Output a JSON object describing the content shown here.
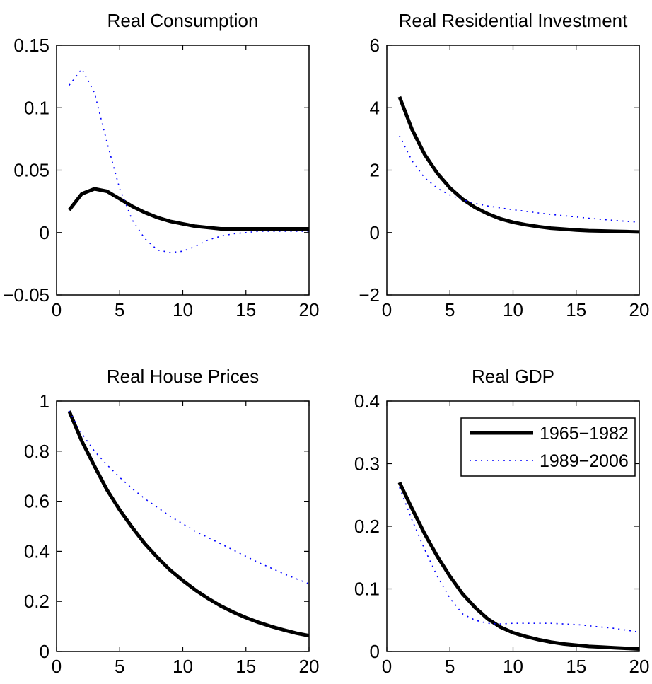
{
  "figure": {
    "legend": {
      "placement": "top-right of panel 4",
      "entries": [
        {
          "label": "1965−1982",
          "series_index": 0
        },
        {
          "label": "1989−2006",
          "series_index": 1
        }
      ]
    },
    "series_styles": [
      {
        "color": "#000000",
        "line": "solid-thick"
      },
      {
        "color": "#0000ff",
        "line": "dotted"
      }
    ]
  },
  "chart_data": [
    {
      "type": "line",
      "title": "Real Consumption",
      "xlabel": "",
      "ylabel": "",
      "xlim": [
        0,
        20
      ],
      "ylim": [
        -0.05,
        0.15
      ],
      "xticks": [
        0,
        5,
        10,
        15,
        20
      ],
      "xtick_labels": [
        "0",
        "5",
        "10",
        "15",
        "20"
      ],
      "yticks": [
        -0.05,
        0,
        0.05,
        0.1,
        0.15
      ],
      "ytick_labels": [
        "−0.05",
        "0",
        "0.05",
        "0.1",
        "0.15"
      ],
      "grid": false,
      "x": [
        1,
        2,
        3,
        4,
        5,
        6,
        7,
        8,
        9,
        10,
        11,
        12,
        13,
        14,
        15,
        16,
        17,
        18,
        19,
        20
      ],
      "series": [
        {
          "name": "1965−1982",
          "values": [
            0.018,
            0.031,
            0.035,
            0.033,
            0.027,
            0.021,
            0.016,
            0.012,
            0.009,
            0.007,
            0.005,
            0.004,
            0.003,
            0.003,
            0.003,
            0.003,
            0.003,
            0.003,
            0.003,
            0.003
          ]
        },
        {
          "name": "1989−2006",
          "values": [
            0.118,
            0.131,
            0.112,
            0.072,
            0.035,
            0.01,
            -0.005,
            -0.014,
            -0.016,
            -0.015,
            -0.011,
            -0.006,
            -0.003,
            -0.001,
            0.0,
            0.001,
            0.001,
            0.001,
            0.001,
            0.001
          ]
        }
      ]
    },
    {
      "type": "line",
      "title": "Real Residential Investment",
      "xlabel": "",
      "ylabel": "",
      "xlim": [
        0,
        20
      ],
      "ylim": [
        -2,
        6
      ],
      "xticks": [
        0,
        5,
        10,
        15,
        20
      ],
      "xtick_labels": [
        "0",
        "5",
        "10",
        "15",
        "20"
      ],
      "yticks": [
        -2,
        0,
        2,
        4,
        6
      ],
      "ytick_labels": [
        "−2",
        "0",
        "2",
        "4",
        "6"
      ],
      "grid": false,
      "x": [
        1,
        2,
        3,
        4,
        5,
        6,
        7,
        8,
        9,
        10,
        11,
        12,
        13,
        14,
        15,
        16,
        17,
        18,
        19,
        20
      ],
      "series": [
        {
          "name": "1965−1982",
          "values": [
            4.35,
            3.3,
            2.5,
            1.9,
            1.43,
            1.07,
            0.8,
            0.6,
            0.44,
            0.33,
            0.25,
            0.19,
            0.14,
            0.11,
            0.08,
            0.06,
            0.05,
            0.04,
            0.03,
            0.02
          ]
        },
        {
          "name": "1989−2006",
          "values": [
            3.1,
            2.3,
            1.75,
            1.42,
            1.2,
            1.05,
            0.93,
            0.85,
            0.79,
            0.73,
            0.68,
            0.63,
            0.58,
            0.54,
            0.5,
            0.46,
            0.42,
            0.39,
            0.36,
            0.33
          ]
        }
      ]
    },
    {
      "type": "line",
      "title": "Real House Prices",
      "xlabel": "",
      "ylabel": "",
      "xlim": [
        0,
        20
      ],
      "ylim": [
        0,
        1
      ],
      "xticks": [
        0,
        5,
        10,
        15,
        20
      ],
      "xtick_labels": [
        "0",
        "5",
        "10",
        "15",
        "20"
      ],
      "yticks": [
        0,
        0.2,
        0.4,
        0.6,
        0.8,
        1
      ],
      "ytick_labels": [
        "0",
        "0.2",
        "0.4",
        "0.6",
        "0.8",
        "1"
      ],
      "grid": false,
      "x": [
        1,
        2,
        3,
        4,
        5,
        6,
        7,
        8,
        9,
        10,
        11,
        12,
        13,
        14,
        15,
        16,
        17,
        18,
        19,
        20
      ],
      "series": [
        {
          "name": "1965−1982",
          "values": [
            0.96,
            0.84,
            0.74,
            0.645,
            0.565,
            0.495,
            0.43,
            0.375,
            0.325,
            0.283,
            0.245,
            0.212,
            0.182,
            0.157,
            0.135,
            0.116,
            0.1,
            0.086,
            0.073,
            0.063
          ]
        },
        {
          "name": "1989−2006",
          "values": [
            0.96,
            0.87,
            0.8,
            0.745,
            0.695,
            0.65,
            0.61,
            0.575,
            0.54,
            0.51,
            0.48,
            0.455,
            0.43,
            0.405,
            0.38,
            0.355,
            0.333,
            0.31,
            0.29,
            0.27
          ]
        }
      ]
    },
    {
      "type": "line",
      "title": "Real GDP",
      "xlabel": "",
      "ylabel": "",
      "xlim": [
        0,
        20
      ],
      "ylim": [
        0,
        0.4
      ],
      "xticks": [
        0,
        5,
        10,
        15,
        20
      ],
      "xtick_labels": [
        "0",
        "5",
        "10",
        "15",
        "20"
      ],
      "yticks": [
        0,
        0.1,
        0.2,
        0.3,
        0.4
      ],
      "ytick_labels": [
        "0",
        "0.1",
        "0.2",
        "0.3",
        "0.4"
      ],
      "grid": false,
      "x": [
        1,
        2,
        3,
        4,
        5,
        6,
        7,
        8,
        9,
        10,
        11,
        12,
        13,
        14,
        15,
        16,
        17,
        18,
        19,
        20
      ],
      "series": [
        {
          "name": "1965−1982",
          "values": [
            0.27,
            0.228,
            0.188,
            0.152,
            0.12,
            0.092,
            0.07,
            0.052,
            0.039,
            0.03,
            0.024,
            0.019,
            0.015,
            0.012,
            0.01,
            0.008,
            0.007,
            0.006,
            0.005,
            0.004
          ]
        },
        {
          "name": "1989−2006",
          "values": [
            0.262,
            0.21,
            0.163,
            0.12,
            0.085,
            0.06,
            0.05,
            0.045,
            0.044,
            0.045,
            0.045,
            0.045,
            0.045,
            0.044,
            0.043,
            0.041,
            0.039,
            0.037,
            0.034,
            0.031
          ]
        }
      ]
    }
  ]
}
